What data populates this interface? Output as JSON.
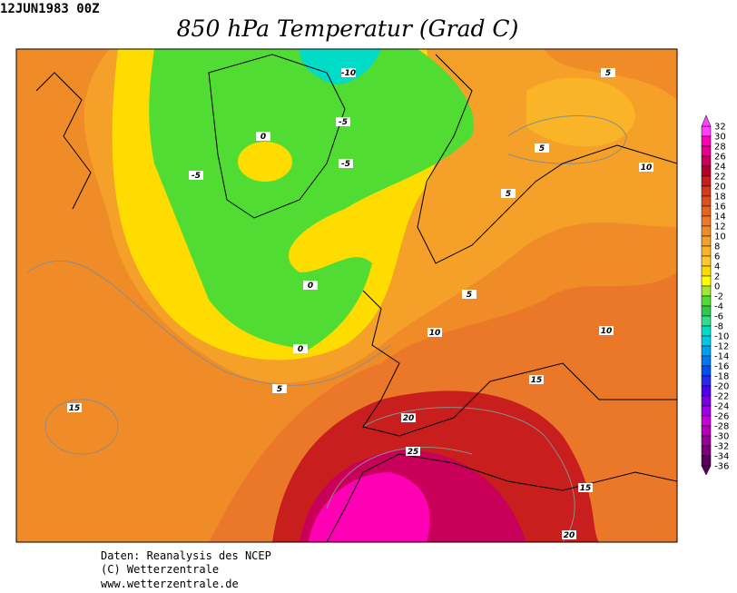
{
  "header": {
    "date": "12JUN1983 00Z",
    "title": "850 hPa Temperatur (Grad C)"
  },
  "map": {
    "contour_labels": [
      -10,
      -5,
      -5,
      -5,
      0,
      0,
      0,
      5,
      5,
      5,
      5,
      5,
      10,
      10,
      10,
      15,
      15,
      15,
      20,
      25,
      20
    ]
  },
  "colorbar": {
    "labels": [
      32,
      30,
      28,
      26,
      24,
      22,
      20,
      18,
      16,
      14,
      12,
      10,
      8,
      6,
      4,
      2,
      0,
      -2,
      -4,
      -6,
      -8,
      -10,
      -12,
      -14,
      -16,
      -18,
      -20,
      -22,
      -24,
      -26,
      -28,
      -30,
      -32,
      -34,
      -36
    ],
    "colors": [
      "#ff40ff",
      "#ff00b4",
      "#e6008c",
      "#c8005a",
      "#b40028",
      "#c81e1e",
      "#d23c1e",
      "#dc501e",
      "#e6641e",
      "#f07828",
      "#f08c28",
      "#f5a028",
      "#fab428",
      "#ffc828",
      "#ffdc00",
      "#ffff00",
      "#a0e632",
      "#50dc32",
      "#32c850",
      "#32dc8c",
      "#00dcc8",
      "#00c8e6",
      "#00a0f0",
      "#0078f0",
      "#0050f0",
      "#2828f0",
      "#5000f0",
      "#7800e6",
      "#a000e6",
      "#c800dc",
      "#b400b4",
      "#960096",
      "#780078",
      "#5a005a"
    ]
  },
  "footer": {
    "lines": [
      "Daten: Reanalysis des NCEP",
      "(C) Wetterzentrale",
      "www.wetterzentrale.de"
    ]
  }
}
